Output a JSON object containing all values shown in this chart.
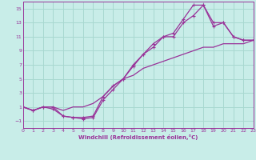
{
  "xlabel": "Windchill (Refroidissement éolien,°C)",
  "bg_color": "#c8ede8",
  "grid_color": "#a8d8d0",
  "line_color": "#993399",
  "xlim": [
    0,
    23
  ],
  "ylim": [
    -2,
    16
  ],
  "xticks": [
    0,
    1,
    2,
    3,
    4,
    5,
    6,
    7,
    8,
    9,
    10,
    11,
    12,
    13,
    14,
    15,
    16,
    17,
    18,
    19,
    20,
    21,
    22,
    23
  ],
  "yticks": [
    -1,
    1,
    3,
    5,
    7,
    9,
    11,
    13,
    15
  ],
  "line1_x": [
    0,
    1,
    2,
    3,
    4,
    5,
    6,
    7,
    8,
    9,
    10,
    11,
    12,
    13,
    14,
    15,
    16,
    17,
    18,
    19,
    20,
    21,
    22,
    23
  ],
  "line1_y": [
    1,
    0.5,
    1,
    1,
    -0.3,
    -0.5,
    -0.5,
    -0.3,
    2.5,
    4,
    5,
    6.8,
    8.5,
    10,
    11,
    11.5,
    13.5,
    15.5,
    15.5,
    13,
    13,
    11,
    10.5,
    10.5
  ],
  "line2_x": [
    0,
    1,
    2,
    3,
    4,
    5,
    6,
    7,
    8,
    9,
    10,
    11,
    12,
    13,
    14,
    15,
    16,
    17,
    18,
    19,
    20,
    21,
    22,
    23
  ],
  "line2_y": [
    1,
    0.5,
    1,
    0.7,
    -0.3,
    -0.5,
    -0.7,
    -0.5,
    2,
    3.5,
    5,
    7,
    8.5,
    9.5,
    11,
    11,
    13,
    14,
    15.5,
    12.5,
    13,
    11,
    10.5,
    10.5
  ],
  "line3_x": [
    0,
    1,
    2,
    3,
    4,
    5,
    6,
    7,
    8,
    9,
    10,
    11,
    12,
    13,
    14,
    15,
    16,
    17,
    18,
    19,
    20,
    21,
    22,
    23
  ],
  "line3_y": [
    1,
    0.5,
    1,
    1,
    0.5,
    1,
    1,
    1.5,
    2.5,
    4,
    5,
    5.5,
    6.5,
    7,
    7.5,
    8,
    8.5,
    9,
    9.5,
    9.5,
    10,
    10,
    10,
    10.5
  ]
}
